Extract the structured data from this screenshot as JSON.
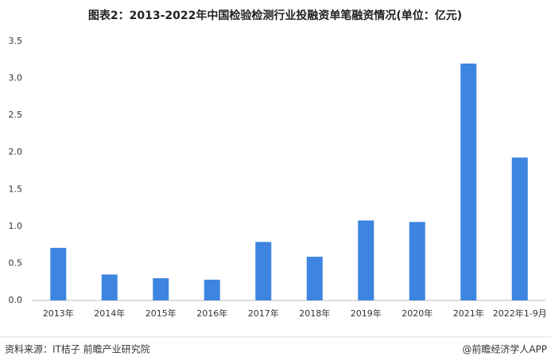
{
  "chart_data": {
    "type": "bar",
    "title": "图表2：2013-2022年中国检验检测行业投融资单笔融资情况(单位：亿元)",
    "categories": [
      "2013年",
      "2014年",
      "2015年",
      "2016年",
      "2017年",
      "2018年",
      "2019年",
      "2020年",
      "2021年",
      "2022年1-9月"
    ],
    "values": [
      0.71,
      0.35,
      0.3,
      0.28,
      0.79,
      0.59,
      1.08,
      1.06,
      3.2,
      1.93
    ],
    "color": "#3d85e0",
    "ylim": [
      0,
      3.5
    ],
    "yticks": [
      {
        "value": 0,
        "label": "0.0"
      },
      0.5,
      {
        "value": 1,
        "label": "1.0"
      },
      1.5,
      {
        "value": 2,
        "label": "2.0"
      },
      2.5,
      {
        "value": 3,
        "label": "3.0"
      },
      3.5
    ],
    "grid": false,
    "source": "资料来源：IT桔子 前瞻产业研究院",
    "credit": "@前瞻经济学人APP"
  }
}
